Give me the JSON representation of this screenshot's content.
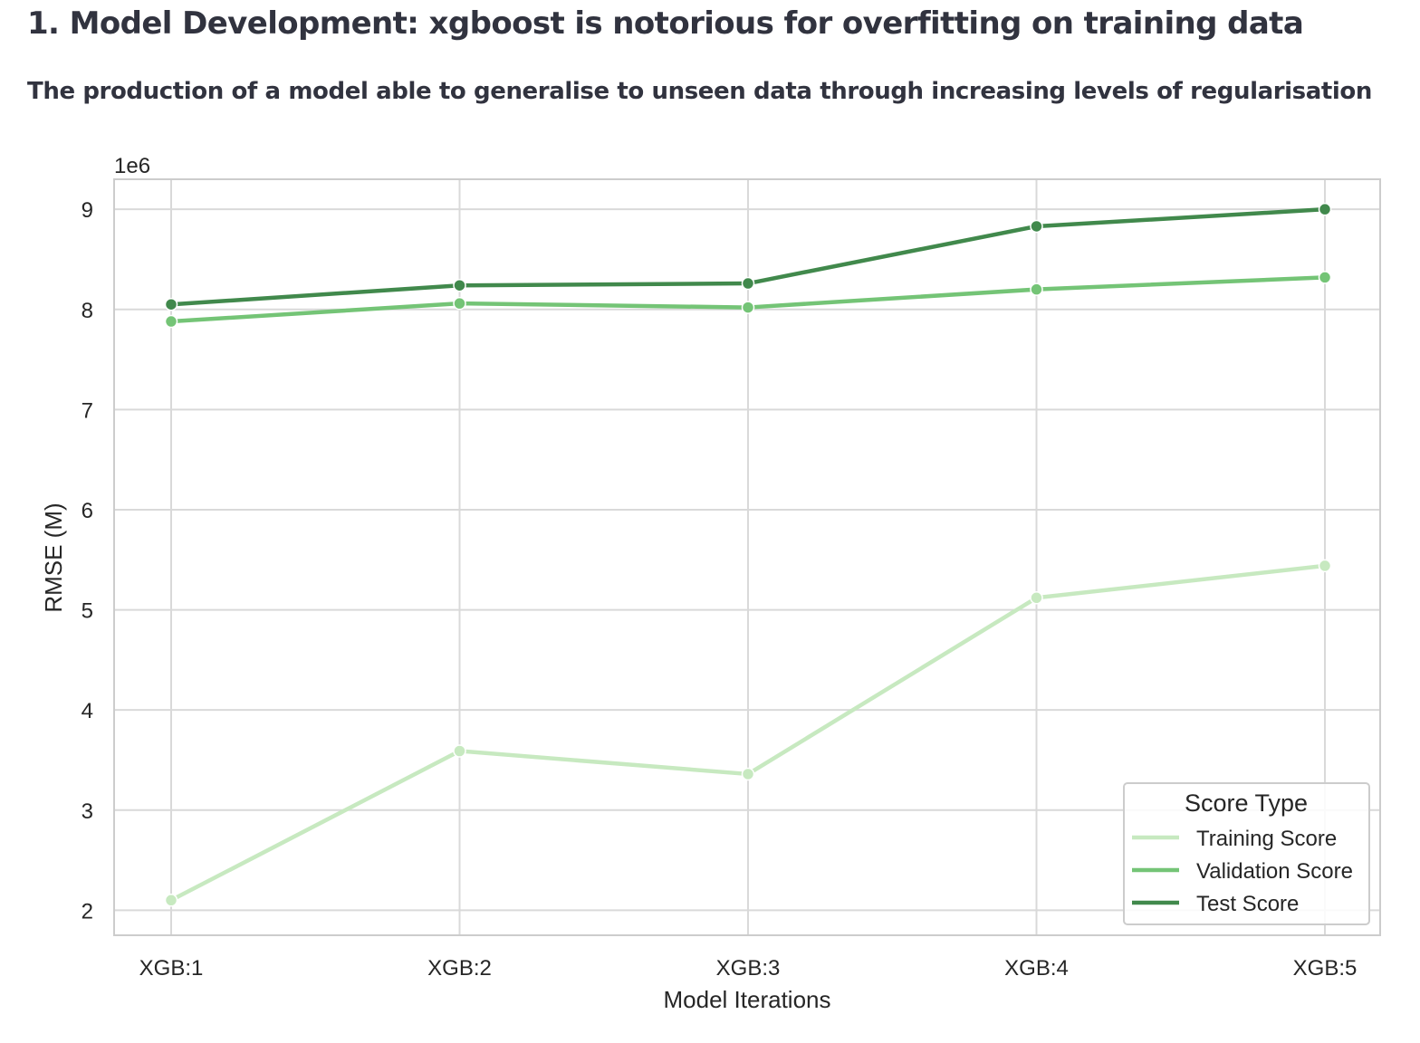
{
  "page": {
    "heading": "1. Model Development: xgboost is notorious for overfitting on training data",
    "subheading": "The production of a model able to generalise to unseen data through increasing levels of regularisation"
  },
  "chart_data": {
    "type": "line",
    "categories": [
      "XGB:1",
      "XGB:2",
      "XGB:3",
      "XGB:4",
      "XGB:5"
    ],
    "xlabel": "Model Iterations",
    "ylabel": "RMSE (M)",
    "y_offset_label": "1e6",
    "ylim": [
      1.75,
      9.3
    ],
    "yticks": [
      2,
      3,
      4,
      5,
      6,
      7,
      8,
      9
    ],
    "grid": true,
    "legend": {
      "title": "Score Type",
      "placement": "lower-right"
    },
    "series": [
      {
        "name": "Training Score",
        "color": "#c7e9c0",
        "values": [
          2.1,
          3.59,
          3.36,
          5.12,
          5.44
        ]
      },
      {
        "name": "Validation Score",
        "color": "#74c476",
        "values": [
          7.88,
          8.06,
          8.02,
          8.2,
          8.32
        ]
      },
      {
        "name": "Test Score",
        "color": "#41894c",
        "values": [
          8.05,
          8.24,
          8.26,
          8.83,
          9.0
        ]
      }
    ]
  }
}
